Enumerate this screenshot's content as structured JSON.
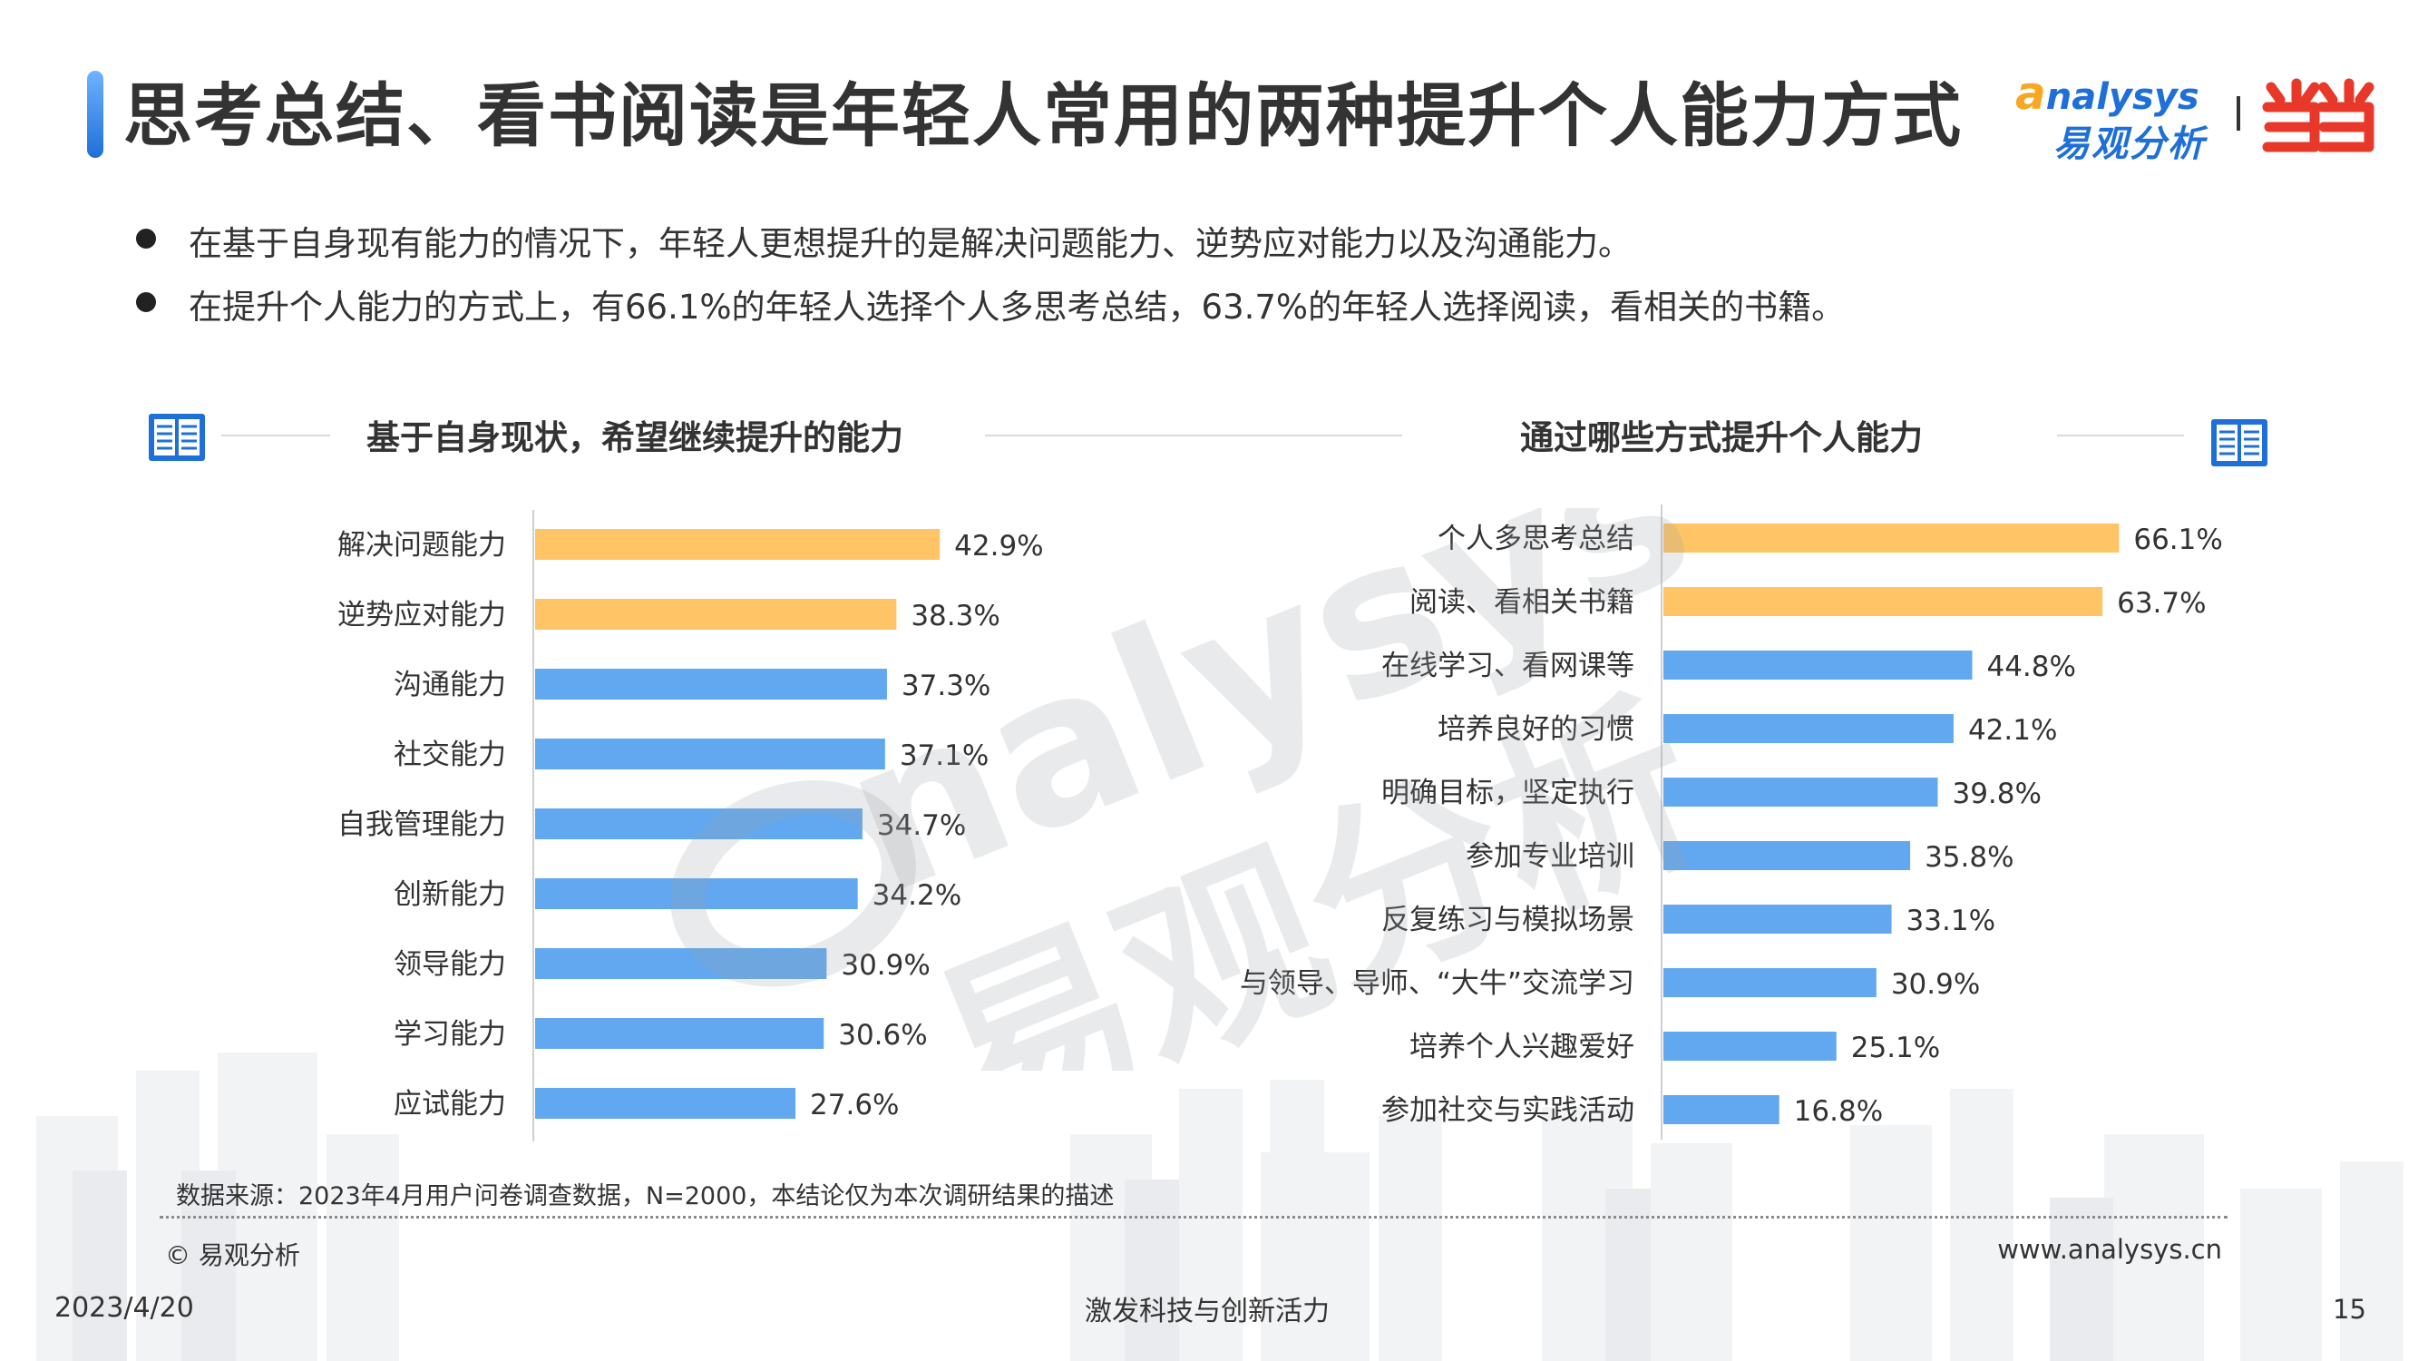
{
  "header": {
    "title": "思考总结、看书阅读是年轻人常用的两种提升个人能力方式",
    "logo_en": "nalysys",
    "logo_en_initial": "a",
    "logo_cn": "易观分析",
    "logo_dangdang": "当当"
  },
  "bullets": [
    "在基于自身现有能力的情况下，年轻人更想提升的是解决问题能力、逆势应对能力以及沟通能力。",
    "在提升个人能力的方式上，有66.1%的年轻人选择个人多思考总结，63.7%的年轻人选择阅读，看相关的书籍。"
  ],
  "colors": {
    "highlight": "#fec465",
    "normal": "#62a8f0",
    "accent": "#1f6fd8"
  },
  "chart_data": [
    {
      "type": "bar",
      "orientation": "horizontal",
      "title": "基于自身现状，希望继续提升的能力",
      "categories": [
        "解决问题能力",
        "逆势应对能力",
        "沟通能力",
        "社交能力",
        "自我管理能力",
        "创新能力",
        "领导能力",
        "学习能力",
        "应试能力"
      ],
      "values": [
        42.9,
        38.3,
        37.3,
        37.1,
        34.7,
        34.2,
        30.9,
        30.6,
        27.6
      ],
      "labels": [
        "42.9%",
        "38.3%",
        "37.3%",
        "37.1%",
        "34.7%",
        "34.2%",
        "30.9%",
        "30.6%",
        "27.6%"
      ],
      "highlight_top": 2,
      "xlim": [
        0,
        100
      ]
    },
    {
      "type": "bar",
      "orientation": "horizontal",
      "title": "通过哪些方式提升个人能力",
      "categories": [
        "个人多思考总结",
        "阅读、看相关书籍",
        "在线学习、看网课等",
        "培养良好的习惯",
        "明确目标，坚定执行",
        "参加专业培训",
        "反复练习与模拟场景",
        "与领导、导师、“大牛”交流学习",
        "培养个人兴趣爱好",
        "参加社交与实践活动"
      ],
      "values": [
        66.1,
        63.7,
        44.8,
        42.1,
        39.8,
        35.8,
        33.1,
        30.9,
        25.1,
        16.8
      ],
      "labels": [
        "66.1%",
        "63.7%",
        "44.8%",
        "42.1%",
        "39.8%",
        "35.8%",
        "33.1%",
        "30.9%",
        "25.1%",
        "16.8%"
      ],
      "highlight_top": 2,
      "xlim": [
        0,
        100
      ]
    }
  ],
  "watermark": {
    "en": "nalysys",
    "cn": "易观分析"
  },
  "footer": {
    "source": "数据来源：2023年4月用户问卷调查数据，N=2000，本结论仅为本次调研结果的描述",
    "copyright": "© 易观分析",
    "website": "www.analysys.cn",
    "date": "2023/4/20",
    "slogan": "激发科技与创新活力",
    "page": "15"
  }
}
